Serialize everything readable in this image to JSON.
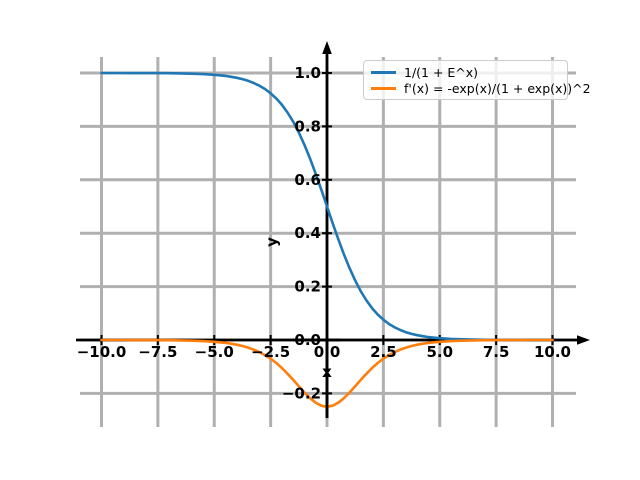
{
  "chart_data": {
    "type": "line",
    "title": "",
    "xlabel": "x",
    "ylabel": "y",
    "xlim": [
      -11,
      11
    ],
    "ylim": [
      -0.3125,
      1.0625
    ],
    "grid": true,
    "legend_position": "upper right",
    "x_ticks": {
      "values": [
        -10,
        -7.5,
        -5,
        -2.5,
        0,
        2.5,
        5,
        7.5,
        10
      ],
      "labels": [
        "−10.0",
        "−7.5",
        "−5.0",
        "−2.5",
        "0.0",
        "2.5",
        "5.0",
        "7.5",
        "10.0"
      ]
    },
    "y_ticks": {
      "values": [
        -0.2,
        0,
        0.2,
        0.4,
        0.6,
        0.8,
        1.0
      ],
      "labels": [
        "−0.2",
        "0.0",
        "0.2",
        "0.4",
        "0.6",
        "0.8",
        "1.0"
      ]
    },
    "x": [
      -10,
      -9.5,
      -9,
      -8.5,
      -8,
      -7.5,
      -7,
      -6.5,
      -6,
      -5.5,
      -5,
      -4.75,
      -4.5,
      -4.25,
      -4,
      -3.75,
      -3.5,
      -3.25,
      -3,
      -2.75,
      -2.5,
      -2.25,
      -2,
      -1.75,
      -1.5,
      -1.25,
      -1,
      -0.75,
      -0.5,
      -0.25,
      0,
      0.25,
      0.5,
      0.75,
      1,
      1.25,
      1.5,
      1.75,
      2,
      2.25,
      2.5,
      2.75,
      3,
      3.25,
      3.5,
      3.75,
      4,
      4.25,
      4.5,
      4.75,
      5,
      5.5,
      6,
      6.5,
      7,
      7.5,
      8,
      8.5,
      9,
      9.5,
      10
    ],
    "series": [
      {
        "name": "1/(1 + E^x)",
        "color": "#1f77b4",
        "y": [
          0.99995,
          0.99993,
          0.99988,
          0.9998,
          0.99966,
          0.99945,
          0.99909,
          0.9985,
          0.99753,
          0.99593,
          0.99331,
          0.99142,
          0.98901,
          0.98594,
          0.98201,
          0.97702,
          0.97069,
          0.96267,
          0.95257,
          0.93991,
          0.92414,
          0.90465,
          0.8808,
          0.85195,
          0.81757,
          0.7773,
          0.73106,
          0.67918,
          0.62246,
          0.56218,
          0.5,
          0.43782,
          0.37754,
          0.32082,
          0.26894,
          0.2227,
          0.18243,
          0.14805,
          0.1192,
          0.09535,
          0.07586,
          0.06009,
          0.04743,
          0.03733,
          0.02931,
          0.02298,
          0.01799,
          0.01406,
          0.01099,
          0.00858,
          0.00669,
          0.00407,
          0.00247,
          0.0015,
          0.00091,
          0.00055,
          0.00034,
          0.0002,
          0.00012,
          7e-05,
          5e-05
        ]
      },
      {
        "name": "f'(x) = -exp(x)/(1 + exp(x))^2",
        "color": "#ff7f0e",
        "y": [
          -5e-05,
          -7e-05,
          -0.00012,
          -0.0002,
          -0.00034,
          -0.00055,
          -0.00091,
          -0.0015,
          -0.00247,
          -0.00405,
          -0.00665,
          -0.0085,
          -0.01087,
          -0.01387,
          -0.01766,
          -0.02245,
          -0.02845,
          -0.03593,
          -0.04518,
          -0.05648,
          -0.0701,
          -0.08626,
          -0.10499,
          -0.12613,
          -0.14914,
          -0.1731,
          -0.19661,
          -0.21789,
          -0.235,
          -0.24614,
          -0.25,
          -0.24614,
          -0.235,
          -0.21789,
          -0.19661,
          -0.1731,
          -0.14914,
          -0.12613,
          -0.10499,
          -0.08626,
          -0.0701,
          -0.05648,
          -0.04518,
          -0.03593,
          -0.02845,
          -0.02245,
          -0.01766,
          -0.01387,
          -0.01087,
          -0.0085,
          -0.00665,
          -0.00405,
          -0.00247,
          -0.0015,
          -0.00091,
          -0.00055,
          -0.00034,
          -0.0002,
          -0.00012,
          -7e-05,
          -5e-05
        ]
      }
    ]
  },
  "colors": {
    "grid": "#b0b0b0",
    "axis": "#000000",
    "tick_label": "#000000",
    "background": "#ffffff"
  }
}
